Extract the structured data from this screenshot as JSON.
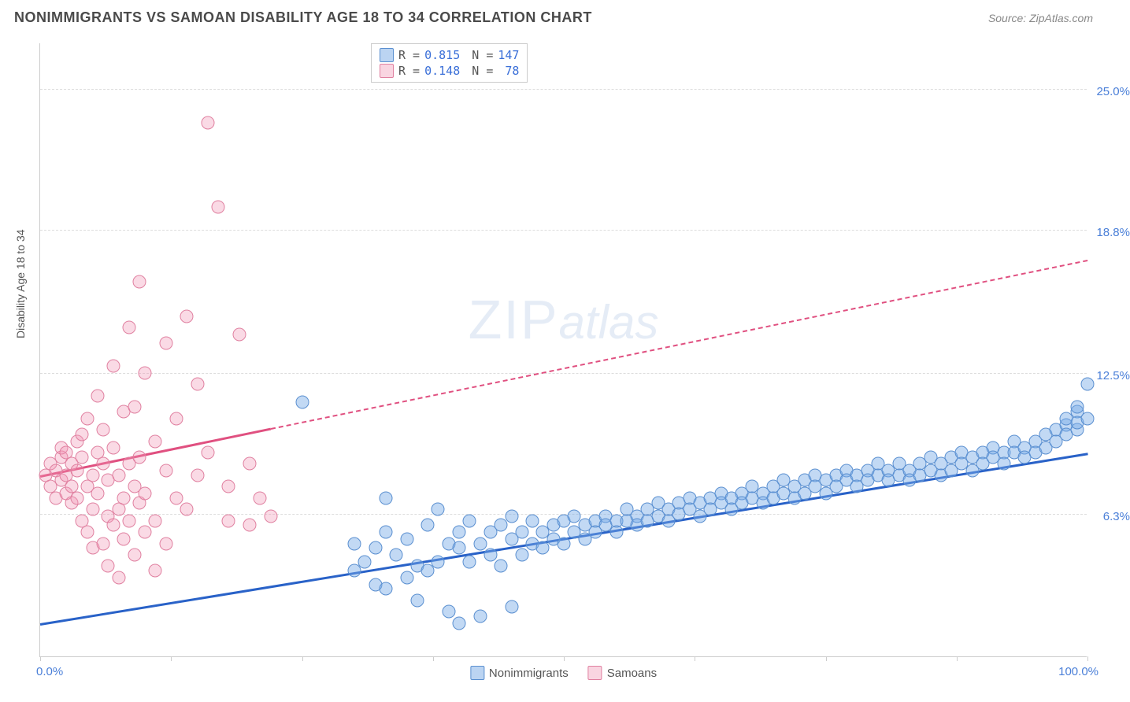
{
  "header": {
    "title": "NONIMMIGRANTS VS SAMOAN DISABILITY AGE 18 TO 34 CORRELATION CHART",
    "source": "Source: ZipAtlas.com"
  },
  "chart": {
    "type": "scatter",
    "y_axis_label": "Disability Age 18 to 34",
    "xlim": [
      0,
      100
    ],
    "ylim": [
      0,
      27
    ],
    "x_label_min": "0.0%",
    "x_label_max": "100.0%",
    "x_ticks": [
      0,
      12.5,
      25,
      37.5,
      50,
      62.5,
      75,
      87.5,
      100
    ],
    "y_gridlines": [
      {
        "value": 6.3,
        "label": "6.3%"
      },
      {
        "value": 12.5,
        "label": "12.5%"
      },
      {
        "value": 18.8,
        "label": "18.8%"
      },
      {
        "value": 25.0,
        "label": "25.0%"
      }
    ],
    "background_color": "#ffffff",
    "grid_color": "#dddddd",
    "marker_size": 17,
    "watermark": {
      "zip": "ZIP",
      "atlas": "atlas"
    },
    "series": [
      {
        "name": "Nonimmigrants",
        "color_fill": "rgba(120,170,230,0.45)",
        "color_stroke": "#5a8fd0",
        "trend_color": "#2962c8",
        "R": "0.815",
        "N": "147",
        "trend": {
          "x1": 0,
          "y1": 1.5,
          "x2": 100,
          "y2": 9.0,
          "solid_until_x": 100
        },
        "points": [
          [
            25,
            11.2
          ],
          [
            30,
            3.8
          ],
          [
            30,
            5.0
          ],
          [
            31,
            4.2
          ],
          [
            32,
            3.2
          ],
          [
            32,
            4.8
          ],
          [
            33,
            5.5
          ],
          [
            33,
            3.0
          ],
          [
            34,
            4.5
          ],
          [
            35,
            3.5
          ],
          [
            35,
            5.2
          ],
          [
            36,
            2.5
          ],
          [
            36,
            4.0
          ],
          [
            37,
            5.8
          ],
          [
            37,
            3.8
          ],
          [
            38,
            4.2
          ],
          [
            38,
            6.5
          ],
          [
            39,
            5.0
          ],
          [
            39,
            2.0
          ],
          [
            40,
            4.8
          ],
          [
            40,
            5.5
          ],
          [
            41,
            4.2
          ],
          [
            41,
            6.0
          ],
          [
            42,
            5.0
          ],
          [
            42,
            1.8
          ],
          [
            43,
            5.5
          ],
          [
            43,
            4.5
          ],
          [
            44,
            5.8
          ],
          [
            44,
            4.0
          ],
          [
            45,
            5.2
          ],
          [
            45,
            6.2
          ],
          [
            46,
            4.5
          ],
          [
            46,
            5.5
          ],
          [
            47,
            5.0
          ],
          [
            47,
            6.0
          ],
          [
            48,
            5.5
          ],
          [
            48,
            4.8
          ],
          [
            49,
            5.8
          ],
          [
            49,
            5.2
          ],
          [
            50,
            6.0
          ],
          [
            50,
            5.0
          ],
          [
            51,
            5.5
          ],
          [
            51,
            6.2
          ],
          [
            52,
            5.8
          ],
          [
            52,
            5.2
          ],
          [
            53,
            6.0
          ],
          [
            53,
            5.5
          ],
          [
            54,
            6.2
          ],
          [
            54,
            5.8
          ],
          [
            55,
            6.0
          ],
          [
            55,
            5.5
          ],
          [
            56,
            6.5
          ],
          [
            56,
            6.0
          ],
          [
            57,
            6.2
          ],
          [
            57,
            5.8
          ],
          [
            58,
            6.5
          ],
          [
            58,
            6.0
          ],
          [
            59,
            6.8
          ],
          [
            59,
            6.2
          ],
          [
            60,
            6.5
          ],
          [
            60,
            6.0
          ],
          [
            61,
            6.8
          ],
          [
            61,
            6.3
          ],
          [
            62,
            7.0
          ],
          [
            62,
            6.5
          ],
          [
            63,
            6.8
          ],
          [
            63,
            6.2
          ],
          [
            64,
            7.0
          ],
          [
            64,
            6.5
          ],
          [
            65,
            7.2
          ],
          [
            65,
            6.8
          ],
          [
            66,
            7.0
          ],
          [
            66,
            6.5
          ],
          [
            67,
            7.2
          ],
          [
            67,
            6.8
          ],
          [
            68,
            7.5
          ],
          [
            68,
            7.0
          ],
          [
            69,
            7.2
          ],
          [
            69,
            6.8
          ],
          [
            70,
            7.5
          ],
          [
            70,
            7.0
          ],
          [
            71,
            7.8
          ],
          [
            71,
            7.2
          ],
          [
            72,
            7.5
          ],
          [
            72,
            7.0
          ],
          [
            73,
            7.8
          ],
          [
            73,
            7.2
          ],
          [
            74,
            8.0
          ],
          [
            74,
            7.5
          ],
          [
            75,
            7.8
          ],
          [
            75,
            7.2
          ],
          [
            76,
            8.0
          ],
          [
            76,
            7.5
          ],
          [
            77,
            8.2
          ],
          [
            77,
            7.8
          ],
          [
            78,
            8.0
          ],
          [
            78,
            7.5
          ],
          [
            79,
            8.2
          ],
          [
            79,
            7.8
          ],
          [
            80,
            8.5
          ],
          [
            80,
            8.0
          ],
          [
            81,
            8.2
          ],
          [
            81,
            7.8
          ],
          [
            82,
            8.5
          ],
          [
            82,
            8.0
          ],
          [
            83,
            8.2
          ],
          [
            83,
            7.8
          ],
          [
            84,
            8.5
          ],
          [
            84,
            8.0
          ],
          [
            85,
            8.8
          ],
          [
            85,
            8.2
          ],
          [
            86,
            8.5
          ],
          [
            86,
            8.0
          ],
          [
            87,
            8.8
          ],
          [
            87,
            8.2
          ],
          [
            88,
            9.0
          ],
          [
            88,
            8.5
          ],
          [
            89,
            8.8
          ],
          [
            89,
            8.2
          ],
          [
            90,
            9.0
          ],
          [
            90,
            8.5
          ],
          [
            91,
            9.2
          ],
          [
            91,
            8.8
          ],
          [
            92,
            9.0
          ],
          [
            92,
            8.5
          ],
          [
            93,
            9.5
          ],
          [
            93,
            9.0
          ],
          [
            94,
            9.2
          ],
          [
            94,
            8.8
          ],
          [
            95,
            9.5
          ],
          [
            95,
            9.0
          ],
          [
            96,
            9.8
          ],
          [
            96,
            9.2
          ],
          [
            97,
            10.0
          ],
          [
            97,
            9.5
          ],
          [
            98,
            10.2
          ],
          [
            98,
            9.8
          ],
          [
            98,
            10.5
          ],
          [
            99,
            10.0
          ],
          [
            99,
            10.8
          ],
          [
            99,
            10.3
          ],
          [
            99,
            11.0
          ],
          [
            100,
            10.5
          ],
          [
            100,
            12.0
          ],
          [
            33,
            7.0
          ],
          [
            40,
            1.5
          ],
          [
            45,
            2.2
          ]
        ]
      },
      {
        "name": "Samoans",
        "color_fill": "rgba(240,150,180,0.35)",
        "color_stroke": "#e080a0",
        "trend_color": "#e05080",
        "R": "0.148",
        "N": "78",
        "trend": {
          "x1": 0,
          "y1": 8.0,
          "x2": 100,
          "y2": 17.5,
          "solid_until_x": 22
        },
        "points": [
          [
            0.5,
            8.0
          ],
          [
            1,
            7.5
          ],
          [
            1,
            8.5
          ],
          [
            1.5,
            8.2
          ],
          [
            1.5,
            7.0
          ],
          [
            2,
            8.8
          ],
          [
            2,
            7.8
          ],
          [
            2,
            9.2
          ],
          [
            2.5,
            8.0
          ],
          [
            2.5,
            7.2
          ],
          [
            2.5,
            9.0
          ],
          [
            3,
            8.5
          ],
          [
            3,
            7.5
          ],
          [
            3,
            6.8
          ],
          [
            3.5,
            9.5
          ],
          [
            3.5,
            8.2
          ],
          [
            3.5,
            7.0
          ],
          [
            4,
            8.8
          ],
          [
            4,
            6.0
          ],
          [
            4,
            9.8
          ],
          [
            4.5,
            7.5
          ],
          [
            4.5,
            5.5
          ],
          [
            4.5,
            10.5
          ],
          [
            5,
            8.0
          ],
          [
            5,
            6.5
          ],
          [
            5,
            4.8
          ],
          [
            5.5,
            9.0
          ],
          [
            5.5,
            7.2
          ],
          [
            5.5,
            11.5
          ],
          [
            6,
            8.5
          ],
          [
            6,
            5.0
          ],
          [
            6,
            10.0
          ],
          [
            6.5,
            7.8
          ],
          [
            6.5,
            6.2
          ],
          [
            6.5,
            4.0
          ],
          [
            7,
            9.2
          ],
          [
            7,
            5.8
          ],
          [
            7,
            12.8
          ],
          [
            7.5,
            8.0
          ],
          [
            7.5,
            6.5
          ],
          [
            7.5,
            3.5
          ],
          [
            8,
            10.8
          ],
          [
            8,
            7.0
          ],
          [
            8,
            5.2
          ],
          [
            8.5,
            14.5
          ],
          [
            8.5,
            8.5
          ],
          [
            8.5,
            6.0
          ],
          [
            9,
            11.0
          ],
          [
            9,
            7.5
          ],
          [
            9,
            4.5
          ],
          [
            9.5,
            16.5
          ],
          [
            9.5,
            8.8
          ],
          [
            9.5,
            6.8
          ],
          [
            10,
            12.5
          ],
          [
            10,
            7.2
          ],
          [
            10,
            5.5
          ],
          [
            11,
            9.5
          ],
          [
            11,
            6.0
          ],
          [
            11,
            3.8
          ],
          [
            12,
            13.8
          ],
          [
            12,
            8.2
          ],
          [
            12,
            5.0
          ],
          [
            13,
            10.5
          ],
          [
            13,
            7.0
          ],
          [
            14,
            15.0
          ],
          [
            14,
            6.5
          ],
          [
            15,
            12.0
          ],
          [
            15,
            8.0
          ],
          [
            16,
            23.5
          ],
          [
            16,
            9.0
          ],
          [
            17,
            19.8
          ],
          [
            18,
            7.5
          ],
          [
            18,
            6.0
          ],
          [
            19,
            14.2
          ],
          [
            20,
            8.5
          ],
          [
            20,
            5.8
          ],
          [
            21,
            7.0
          ],
          [
            22,
            6.2
          ]
        ]
      }
    ],
    "bottom_legend": [
      {
        "swatch": "blue",
        "label": "Nonimmigrants"
      },
      {
        "swatch": "pink",
        "label": "Samoans"
      }
    ]
  }
}
